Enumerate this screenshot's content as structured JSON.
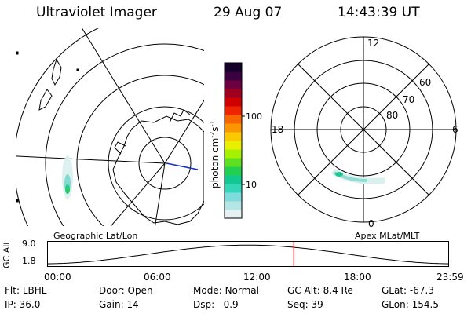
{
  "header": {
    "title": "Ultraviolet Imager",
    "date": "29 Aug 07",
    "time": "14:43:39 UT"
  },
  "left_panel": {
    "label": "Geographic Lat/Lon"
  },
  "right_panel": {
    "label": "Apex MLat/MLT",
    "mlt_labels": [
      "12",
      "18",
      "6",
      "0"
    ],
    "mlat_labels": [
      "60",
      "70",
      "80"
    ]
  },
  "colorbar": {
    "label": "photon cm^-2 s^-1",
    "label_main": "photon cm",
    "sup1": "-2",
    "mid": "s",
    "sup2": "-1",
    "ticks": [
      "100",
      "10"
    ],
    "colors": [
      "#e6f2f2",
      "#b4e6e6",
      "#7fdcdc",
      "#34d6b8",
      "#10c890",
      "#22d050",
      "#5ee020",
      "#a6f000",
      "#e8f000",
      "#fcc800",
      "#fb9600",
      "#f86400",
      "#ee2400",
      "#d00000",
      "#a00020",
      "#6c0040",
      "#3a0040",
      "#140028"
    ]
  },
  "timeline": {
    "axis_label": "GC Alt",
    "y_ticks": [
      "9.0",
      "1.8"
    ],
    "x_ticks": [
      "00:00",
      "06:00",
      "12:00",
      "18:00",
      "23:59"
    ],
    "current_hour": 14.73
  },
  "footer": [
    {
      "label": "Flt:",
      "value": "LBHL"
    },
    {
      "label": "Door:",
      "value": "Open"
    },
    {
      "label": "Mode:",
      "value": "Normal"
    },
    {
      "label": "GC Alt:",
      "value": "8.4 Re"
    },
    {
      "label": "GLat:",
      "value": "-67.3"
    },
    {
      "label": "IP:",
      "value": "36.0"
    },
    {
      "label": "Gain:",
      "value": "14"
    },
    {
      "label": "Dsp:",
      "value": "0.9"
    },
    {
      "label": "Seq:",
      "value": "39"
    },
    {
      "label": "GLon:",
      "value": "154.5"
    }
  ]
}
